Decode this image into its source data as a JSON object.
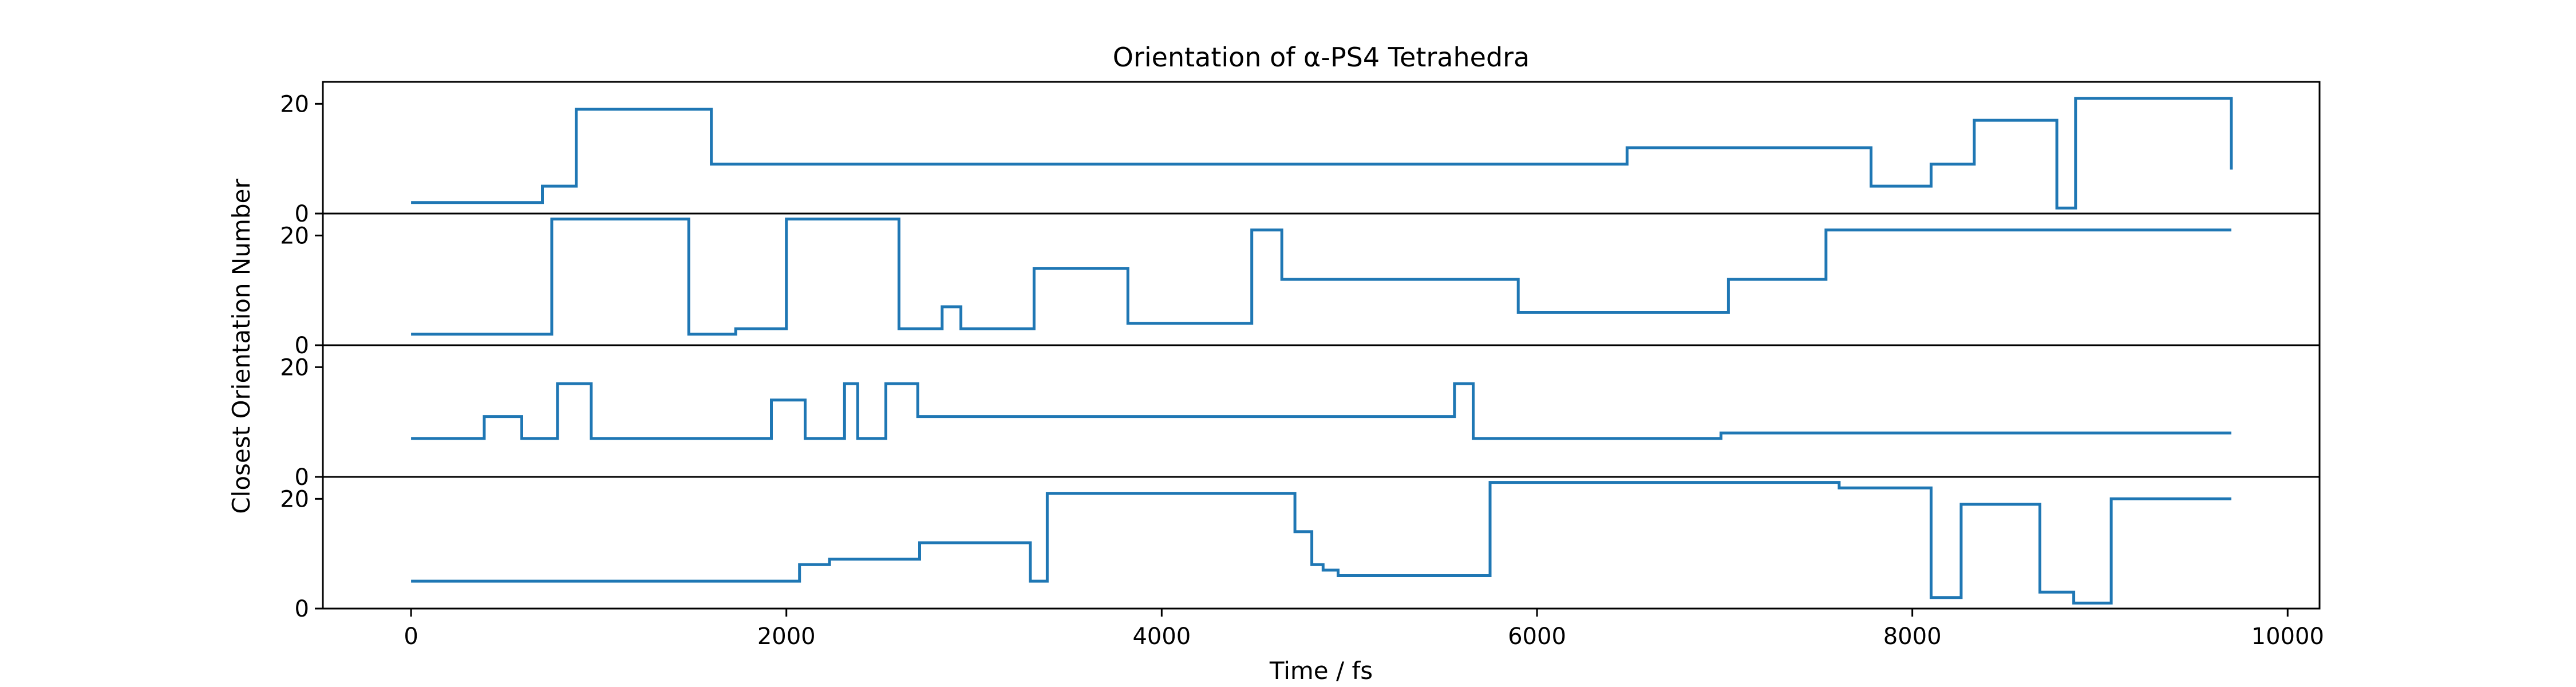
{
  "chart_data": {
    "type": "line",
    "title": "Orientation of α-PS4 Tetrahedra",
    "xlabel": "Time / fs",
    "ylabel": "Closest Orientation Number",
    "xlim": [
      -470,
      10170
    ],
    "ylim": [
      0,
      24
    ],
    "x_ticks": [
      0,
      2000,
      4000,
      6000,
      8000,
      10000
    ],
    "y_ticks": [
      0,
      20
    ],
    "grid": false,
    "line_color": "#1f77b4",
    "step": "post",
    "x_end": 9700,
    "series": [
      {
        "x": [
          0,
          700,
          880,
          1600,
          3770,
          6480,
          7780,
          8100,
          8330,
          8770,
          8870,
          9700
        ],
        "y": [
          2,
          5,
          19,
          9,
          9,
          12,
          5,
          9,
          17,
          1,
          21,
          8
        ]
      },
      {
        "x": [
          0,
          750,
          1480,
          1730,
          2000,
          2600,
          2830,
          2930,
          3320,
          3820,
          4480,
          4640,
          5900,
          7020,
          7540,
          9700
        ],
        "y": [
          2,
          23,
          2,
          3,
          23,
          3,
          7,
          3,
          14,
          4,
          21,
          12,
          6,
          12,
          21,
          21
        ]
      },
      {
        "x": [
          0,
          390,
          590,
          780,
          960,
          1920,
          2100,
          2310,
          2380,
          2530,
          2700,
          5560,
          5660,
          6980,
          9700
        ],
        "y": [
          7,
          11,
          7,
          17,
          7,
          14,
          7,
          17,
          7,
          17,
          11,
          17,
          7,
          8,
          8
        ]
      },
      {
        "x": [
          0,
          2070,
          2230,
          2710,
          3300,
          3390,
          4710,
          4800,
          4860,
          4940,
          5550,
          5750,
          7610,
          8100,
          8260,
          8680,
          8860,
          9060,
          9700
        ],
        "y": [
          5,
          8,
          9,
          12,
          5,
          21,
          14,
          8,
          7,
          6,
          6,
          23,
          22,
          2,
          19,
          3,
          1,
          20,
          20
        ]
      }
    ]
  }
}
